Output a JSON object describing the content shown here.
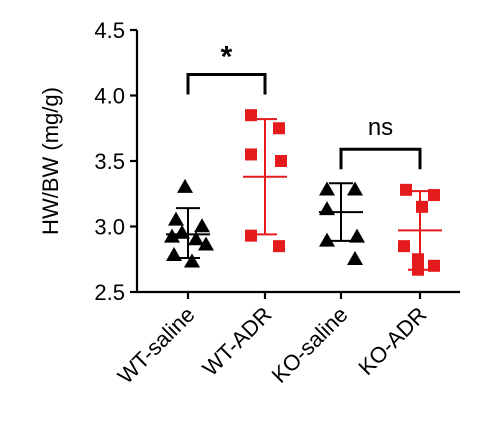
{
  "chart_data": {
    "type": "scatter",
    "ylabel": "HW/BW (mg/g)",
    "xlabel": "",
    "ylim": [
      2.5,
      4.5
    ],
    "yticks": [
      "2.5",
      "3.0",
      "3.5",
      "4.0",
      "4.5"
    ],
    "categories": [
      "WT-saline",
      "WT-ADR",
      "KO-saline",
      "KO-ADR"
    ],
    "series": [
      {
        "category": "WT-saline",
        "marker": "triangle",
        "color": "#000000",
        "points": [
          3.31,
          3.06,
          3.01,
          2.96,
          2.93,
          2.91,
          2.87,
          2.79,
          2.74
        ],
        "mean": 2.94,
        "sd_upper": 3.14,
        "sd_lower": 2.76
      },
      {
        "category": "WT-ADR",
        "marker": "square",
        "color": "#e41a1c",
        "points": [
          3.85,
          3.75,
          3.55,
          3.5,
          2.93,
          2.85
        ],
        "mean": 3.38,
        "sd_upper": 3.82,
        "sd_lower": 2.94
      },
      {
        "category": "KO-saline",
        "marker": "triangle",
        "color": "#000000",
        "points": [
          3.29,
          3.29,
          3.14,
          2.93,
          2.9,
          2.76
        ],
        "mean": 3.11,
        "sd_upper": 3.33,
        "sd_lower": 2.89
      },
      {
        "category": "KO-ADR",
        "marker": "square",
        "color": "#e41a1c",
        "points": [
          3.28,
          3.24,
          3.15,
          2.85,
          2.75,
          2.7,
          2.67
        ],
        "mean": 2.97,
        "sd_upper": 3.27,
        "sd_lower": 2.67
      }
    ],
    "annotations": [
      {
        "between": [
          "WT-saline",
          "WT-ADR"
        ],
        "label": "*",
        "y": 4.16
      },
      {
        "between": [
          "KO-saline",
          "KO-ADR"
        ],
        "label": "ns",
        "y": 3.59
      }
    ]
  }
}
